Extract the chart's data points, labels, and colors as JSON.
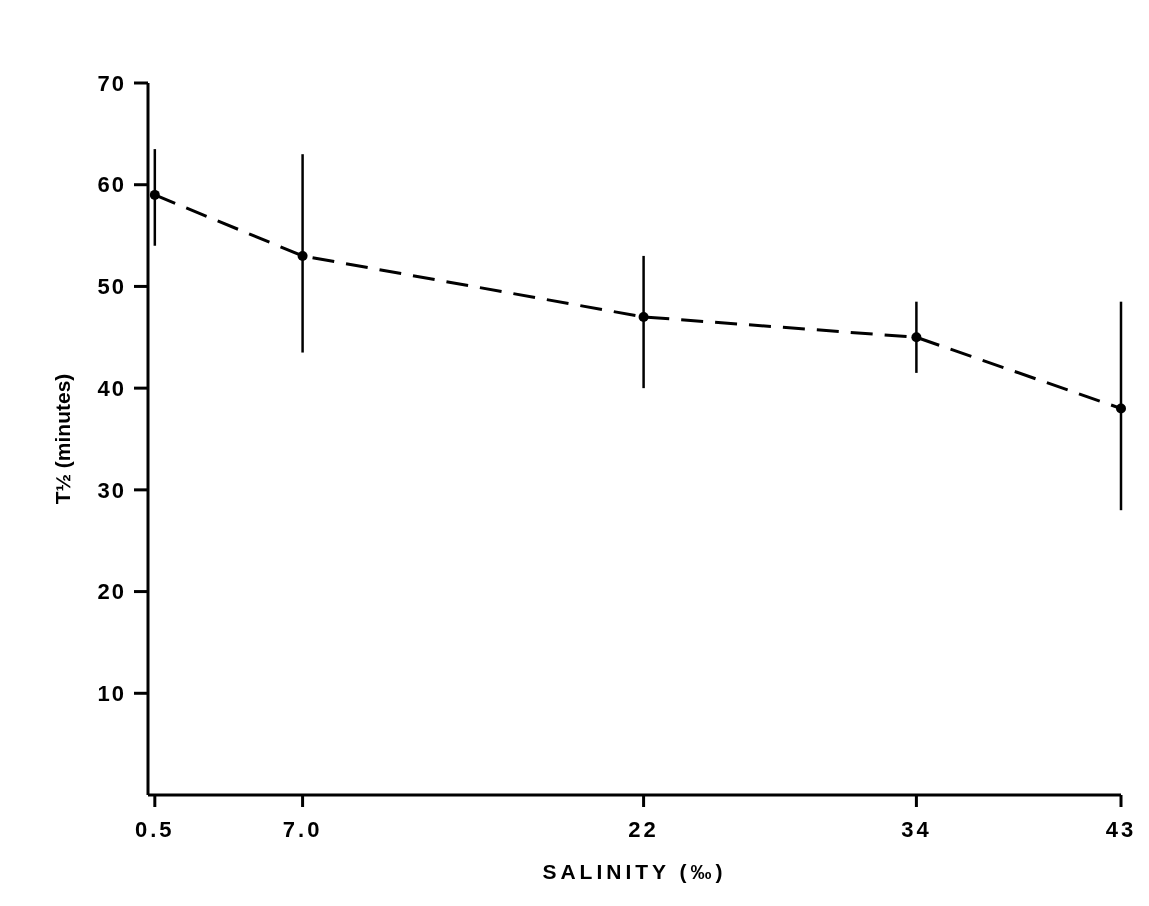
{
  "chart_data": {
    "type": "line",
    "xlabel": "SALINITY (‰)",
    "ylabel": "T½ (minutes)",
    "x": [
      0.5,
      7,
      22,
      34,
      43
    ],
    "series": [
      {
        "color": "#000000",
        "values": [
          59,
          53,
          47,
          45,
          38
        ],
        "errors": [
          [
            54,
            63.5
          ],
          [
            43.5,
            63
          ],
          [
            40,
            53
          ],
          [
            41.5,
            48.5
          ],
          [
            28,
            48.5
          ]
        ]
      }
    ],
    "xlim": [
      0.2,
      43
    ],
    "xticks": [
      0.5,
      {
        "value": 7,
        "label": "7.0"
      },
      22,
      34,
      43
    ],
    "ylim": [
      0,
      70
    ],
    "yticks": [
      {
        "value": 10,
        "label": "10"
      },
      20,
      30,
      40,
      50,
      60,
      70
    ],
    "grid": false,
    "marker": "circle",
    "line_style": "dashed"
  }
}
